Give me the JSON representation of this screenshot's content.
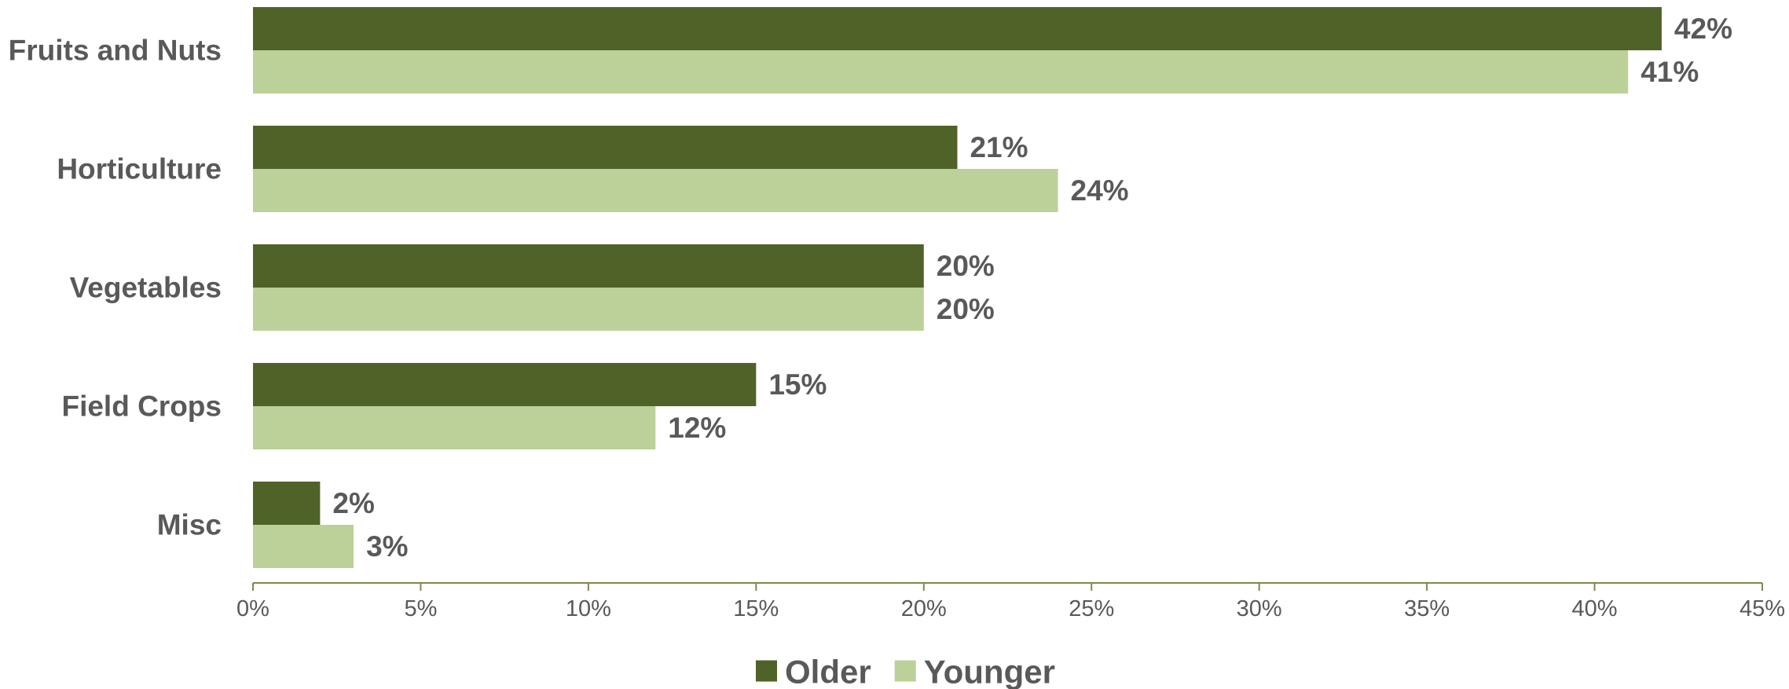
{
  "chart_data": {
    "type": "bar",
    "orientation": "horizontal",
    "categories": [
      "Fruits and Nuts",
      "Horticulture",
      "Vegetables",
      "Field Crops",
      "Misc"
    ],
    "series": [
      {
        "name": "Older",
        "values": [
          42,
          21,
          20,
          15,
          2
        ],
        "labels": [
          "42%",
          "21%",
          "20%",
          "15%",
          "2%"
        ],
        "color": "#4f6228"
      },
      {
        "name": "Younger",
        "values": [
          41,
          24,
          20,
          12,
          3
        ],
        "labels": [
          "41%",
          "24%",
          "20%",
          "12%",
          "3%"
        ],
        "color": "#bbd199"
      }
    ],
    "xlim": [
      0,
      45
    ],
    "xticks": [
      0,
      5,
      10,
      15,
      20,
      25,
      30,
      35,
      40,
      45
    ],
    "xtick_labels": [
      "0%",
      "5%",
      "10%",
      "15%",
      "20%",
      "25%",
      "30%",
      "35%",
      "40%",
      "45%"
    ],
    "grid": false,
    "legend": "bottom-center",
    "axis_color": "#7f8a4e",
    "text_color": "#595959"
  }
}
